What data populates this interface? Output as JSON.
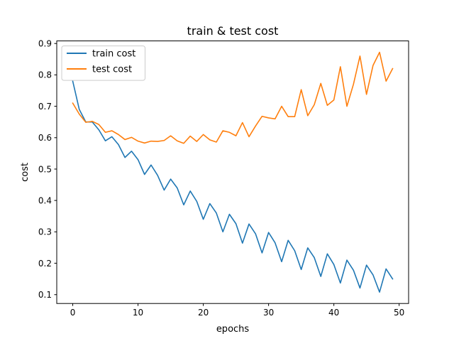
{
  "chart_data": {
    "type": "line",
    "title": "train & test cost",
    "xlabel": "epochs",
    "ylabel": "cost",
    "xlim": [
      -2.45,
      51.45
    ],
    "ylim": [
      0.0718,
      0.9082
    ],
    "xticks": [
      "0",
      "10",
      "20",
      "30",
      "40",
      "50"
    ],
    "xtick_values": [
      0,
      10,
      20,
      30,
      40,
      50
    ],
    "yticks": [
      "0.1",
      "0.2",
      "0.3",
      "0.4",
      "0.5",
      "0.6",
      "0.7",
      "0.8",
      "0.9"
    ],
    "ytick_values": [
      0.1,
      0.2,
      0.3,
      0.4,
      0.5,
      0.6,
      0.7,
      0.8,
      0.9
    ],
    "grid": false,
    "legend_position": "top-left",
    "x": [
      0,
      1,
      2,
      3,
      4,
      5,
      6,
      7,
      8,
      9,
      10,
      11,
      12,
      13,
      14,
      15,
      16,
      17,
      18,
      19,
      20,
      21,
      22,
      23,
      24,
      25,
      26,
      27,
      28,
      29,
      30,
      31,
      32,
      33,
      34,
      35,
      36,
      37,
      38,
      39,
      40,
      41,
      42,
      43,
      44,
      45,
      46,
      47,
      48,
      49
    ],
    "series": [
      {
        "name": "train cost",
        "color": "#1f77b4",
        "values": [
          0.78,
          0.69,
          0.65,
          0.65,
          0.625,
          0.59,
          0.603,
          0.578,
          0.537,
          0.557,
          0.53,
          0.483,
          0.513,
          0.48,
          0.433,
          0.468,
          0.44,
          0.386,
          0.43,
          0.397,
          0.34,
          0.39,
          0.36,
          0.3,
          0.356,
          0.326,
          0.264,
          0.325,
          0.294,
          0.233,
          0.298,
          0.265,
          0.205,
          0.273,
          0.24,
          0.18,
          0.249,
          0.218,
          0.158,
          0.23,
          0.196,
          0.137,
          0.21,
          0.178,
          0.121,
          0.194,
          0.163,
          0.108,
          0.182,
          0.15
        ]
      },
      {
        "name": "test cost",
        "color": "#ff7f0e",
        "values": [
          0.71,
          0.675,
          0.649,
          0.652,
          0.642,
          0.617,
          0.622,
          0.61,
          0.594,
          0.601,
          0.589,
          0.583,
          0.589,
          0.588,
          0.591,
          0.606,
          0.59,
          0.582,
          0.605,
          0.588,
          0.61,
          0.593,
          0.586,
          0.622,
          0.617,
          0.606,
          0.648,
          0.603,
          0.637,
          0.668,
          0.663,
          0.66,
          0.7,
          0.667,
          0.667,
          0.753,
          0.67,
          0.705,
          0.773,
          0.703,
          0.72,
          0.826,
          0.7,
          0.77,
          0.86,
          0.738,
          0.83,
          0.872,
          0.78,
          0.82
        ]
      }
    ]
  }
}
